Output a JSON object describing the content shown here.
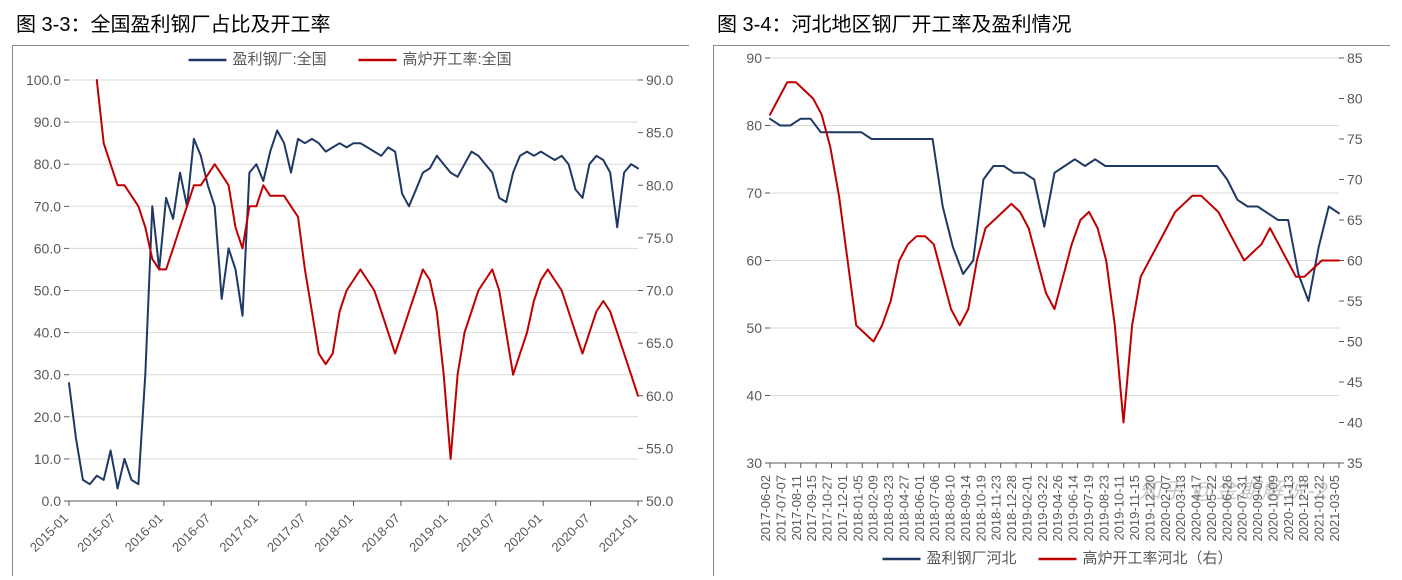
{
  "charts": [
    {
      "title": "图 3-3：全国盈利钢厂占比及开工率",
      "type": "line-dual-axis",
      "legend_position": "top",
      "background_color": "#ffffff",
      "grid_color": "#d9d9d9",
      "border_color": "#888888",
      "tick_color": "#595959",
      "tick_fontsize": 14,
      "title_fontsize": 20,
      "legend_fontsize": 15,
      "line_width": 2,
      "y_left": {
        "min": 0.0,
        "max": 100.0,
        "step": 10.0,
        "ticks": [
          "0.0",
          "10.0",
          "20.0",
          "30.0",
          "40.0",
          "50.0",
          "60.0",
          "70.0",
          "80.0",
          "90.0",
          "100.0"
        ]
      },
      "y_right": {
        "min": 50.0,
        "max": 90.0,
        "step": 5.0,
        "ticks": [
          "50.0",
          "55.0",
          "60.0",
          "65.0",
          "70.0",
          "75.0",
          "80.0",
          "85.0",
          "90.0"
        ]
      },
      "x_labels": [
        "2015-01",
        "2015-07",
        "2016-01",
        "2016-07",
        "2017-01",
        "2017-07",
        "2018-01",
        "2018-07",
        "2019-01",
        "2019-07",
        "2020-01",
        "2020-07",
        "2021-01"
      ],
      "x_label_rotation": -45,
      "series": [
        {
          "name": "盈利钢厂:全国",
          "color": "#1f3864",
          "axis": "left",
          "data": [
            28,
            15,
            5,
            4,
            6,
            5,
            12,
            3,
            10,
            5,
            4,
            30,
            70,
            55,
            72,
            67,
            78,
            70,
            86,
            82,
            75,
            70,
            48,
            60,
            55,
            44,
            78,
            80,
            76,
            83,
            88,
            85,
            78,
            86,
            85,
            86,
            85,
            83,
            84,
            85,
            84,
            85,
            85,
            84,
            83,
            82,
            84,
            83,
            73,
            70,
            74,
            78,
            79,
            82,
            80,
            78,
            77,
            80,
            83,
            82,
            80,
            78,
            72,
            71,
            78,
            82,
            83,
            82,
            83,
            82,
            81,
            82,
            80,
            74,
            72,
            80,
            82,
            81,
            78,
            65,
            78,
            80,
            79
          ]
        },
        {
          "name": "高炉开工率:全国",
          "color": "#c00000",
          "axis": "right",
          "data": [
            null,
            null,
            null,
            null,
            90,
            84,
            82,
            80,
            80,
            79,
            78,
            76,
            73,
            72,
            72,
            74,
            76,
            78,
            80,
            80,
            81,
            82,
            81,
            80,
            76,
            74,
            78,
            78,
            80,
            79,
            79,
            79,
            78,
            77,
            72,
            68,
            64,
            63,
            64,
            68,
            70,
            71,
            72,
            71,
            70,
            68,
            66,
            64,
            66,
            68,
            70,
            72,
            71,
            68,
            62,
            54,
            62,
            66,
            68,
            70,
            71,
            72,
            70,
            66,
            62,
            64,
            66,
            69,
            71,
            72,
            71,
            70,
            68,
            66,
            64,
            66,
            68,
            69,
            68,
            66,
            64,
            62,
            60
          ]
        }
      ]
    },
    {
      "title": "图 3-4：河北地区钢厂开工率及盈利情况",
      "type": "line-dual-axis",
      "legend_position": "bottom",
      "background_color": "#ffffff",
      "grid_color": "#d9d9d9",
      "border_color": "#888888",
      "tick_color": "#595959",
      "tick_fontsize": 14,
      "title_fontsize": 20,
      "legend_fontsize": 15,
      "line_width": 2,
      "y_left": {
        "min": 30,
        "max": 90,
        "step": 10,
        "ticks": [
          "30",
          "40",
          "50",
          "60",
          "70",
          "80",
          "90"
        ]
      },
      "y_right": {
        "min": 35,
        "max": 85,
        "step": 5,
        "ticks": [
          "35",
          "40",
          "45",
          "50",
          "55",
          "60",
          "65",
          "70",
          "75",
          "80",
          "85"
        ]
      },
      "x_labels": [
        "2017-06-02",
        "2017-07-07",
        "2017-08-11",
        "2017-09-15",
        "2017-10-27",
        "2017-12-01",
        "2018-01-05",
        "2018-02-09",
        "2018-03-23",
        "2018-04-27",
        "2018-06-01",
        "2018-07-06",
        "2018-08-10",
        "2018-09-14",
        "2018-10-19",
        "2018-11-23",
        "2018-12-28",
        "2019-02-01",
        "2019-03-22",
        "2019-04-26",
        "2019-06-14",
        "2019-07-19",
        "2019-08-23",
        "2019-10-11",
        "2019-11-15",
        "2019-12-20",
        "2020-02-07",
        "2020-03-13",
        "2020-04-17",
        "2020-05-22",
        "2020-06-26",
        "2020-07-31",
        "2020-09-04",
        "2020-10-09",
        "2020-11-13",
        "2020-12-18",
        "2021-01-22",
        "2021-03-05"
      ],
      "x_label_rotation": -90,
      "series": [
        {
          "name": "盈利钢厂河北",
          "color": "#1f3864",
          "axis": "left",
          "data": [
            81,
            80,
            80,
            81,
            81,
            79,
            79,
            79,
            79,
            79,
            78,
            78,
            78,
            78,
            78,
            78,
            78,
            68,
            62,
            58,
            60,
            72,
            74,
            74,
            73,
            73,
            72,
            65,
            73,
            74,
            75,
            74,
            75,
            74,
            74,
            74,
            74,
            74,
            74,
            74,
            74,
            74,
            74,
            74,
            74,
            72,
            69,
            68,
            68,
            67,
            66,
            66,
            58,
            54,
            62,
            68,
            67
          ]
        },
        {
          "name": "高炉开工率河北（右）",
          "color": "#c00000",
          "axis": "right",
          "data": [
            78,
            80,
            82,
            82,
            81,
            80,
            78,
            74,
            68,
            60,
            52,
            51,
            50,
            52,
            55,
            60,
            62,
            63,
            63,
            62,
            58,
            54,
            52,
            54,
            60,
            64,
            65,
            66,
            67,
            66,
            64,
            60,
            56,
            54,
            58,
            62,
            65,
            66,
            64,
            60,
            52,
            40,
            52,
            58,
            60,
            62,
            64,
            66,
            67,
            68,
            68,
            67,
            66,
            64,
            62,
            60,
            61,
            62,
            64,
            62,
            60,
            58,
            58,
            59,
            60,
            60,
            60
          ]
        }
      ]
    }
  ],
  "watermark": "知乎 @金期解说-2"
}
